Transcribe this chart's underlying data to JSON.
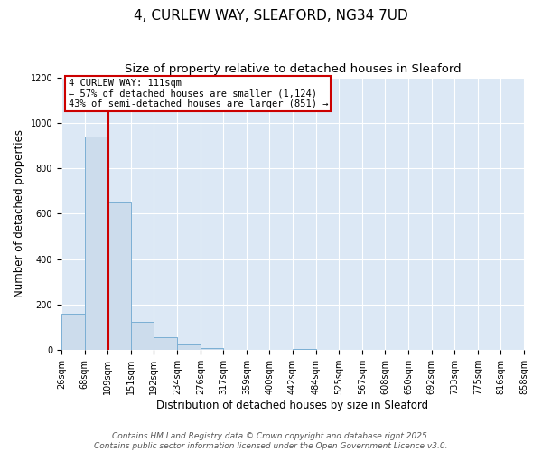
{
  "title": "4, CURLEW WAY, SLEAFORD, NG34 7UD",
  "subtitle": "Size of property relative to detached houses in Sleaford",
  "xlabel": "Distribution of detached houses by size in Sleaford",
  "ylabel": "Number of detached properties",
  "bin_edges": [
    26,
    68,
    109,
    151,
    192,
    234,
    276,
    317,
    359,
    400,
    442,
    484,
    525,
    567,
    608,
    650,
    692,
    733,
    775,
    816,
    858
  ],
  "bar_heights": [
    160,
    940,
    650,
    125,
    55,
    25,
    10,
    0,
    0,
    0,
    5,
    0,
    0,
    0,
    0,
    0,
    0,
    0,
    0,
    0
  ],
  "bar_color": "#ccdcec",
  "bar_edge_color": "#7bafd4",
  "property_line_x": 111,
  "property_line_color": "#cc0000",
  "annotation_title": "4 CURLEW WAY: 111sqm",
  "annotation_line1": "← 57% of detached houses are smaller (1,124)",
  "annotation_line2": "43% of semi-detached houses are larger (851) →",
  "annotation_box_color": "#ffffff",
  "annotation_box_edge": "#cc0000",
  "ylim": [
    0,
    1200
  ],
  "yticks": [
    0,
    200,
    400,
    600,
    800,
    1000,
    1200
  ],
  "fig_bg": "#ffffff",
  "plot_bg": "#dce8f5",
  "grid_color": "#ffffff",
  "footer1": "Contains HM Land Registry data © Crown copyright and database right 2025.",
  "footer2": "Contains public sector information licensed under the Open Government Licence v3.0.",
  "title_fontsize": 11,
  "subtitle_fontsize": 9.5,
  "axis_label_fontsize": 8.5,
  "tick_label_fontsize": 7,
  "footer_fontsize": 6.5,
  "annotation_fontsize": 7.5
}
